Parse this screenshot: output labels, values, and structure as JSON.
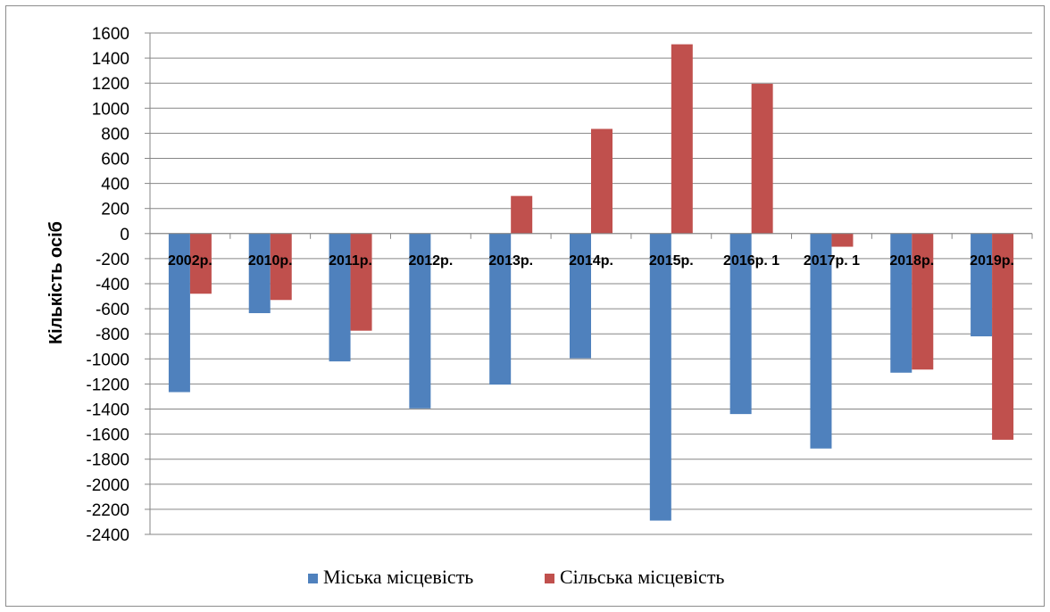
{
  "chart_data": {
    "type": "bar",
    "title": "",
    "xlabel": "",
    "ylabel": "Кількість осіб",
    "ylim": [
      -2400,
      1600
    ],
    "ytick_step": 200,
    "grid": "horizontal",
    "legend_position": "bottom",
    "categories": [
      "2002р.",
      "2010р.",
      "2011р.",
      "2012р.",
      "2013р.",
      "2014р.",
      "2015р.",
      "2016р. 1",
      "2017р. 1",
      "2018р.",
      "2019р."
    ],
    "series": [
      {
        "name": "Міська місцевість",
        "color": "#4F81BD",
        "values": [
          -1265,
          -635,
          -1020,
          -1395,
          -1205,
          -995,
          -2290,
          -1440,
          -1715,
          -1110,
          -820
        ]
      },
      {
        "name": "Сільська місцевість",
        "color": "#C0504D",
        "values": [
          -480,
          -530,
          -775,
          0,
          300,
          835,
          1510,
          1195,
          -105,
          -1085,
          -1645
        ]
      }
    ]
  }
}
